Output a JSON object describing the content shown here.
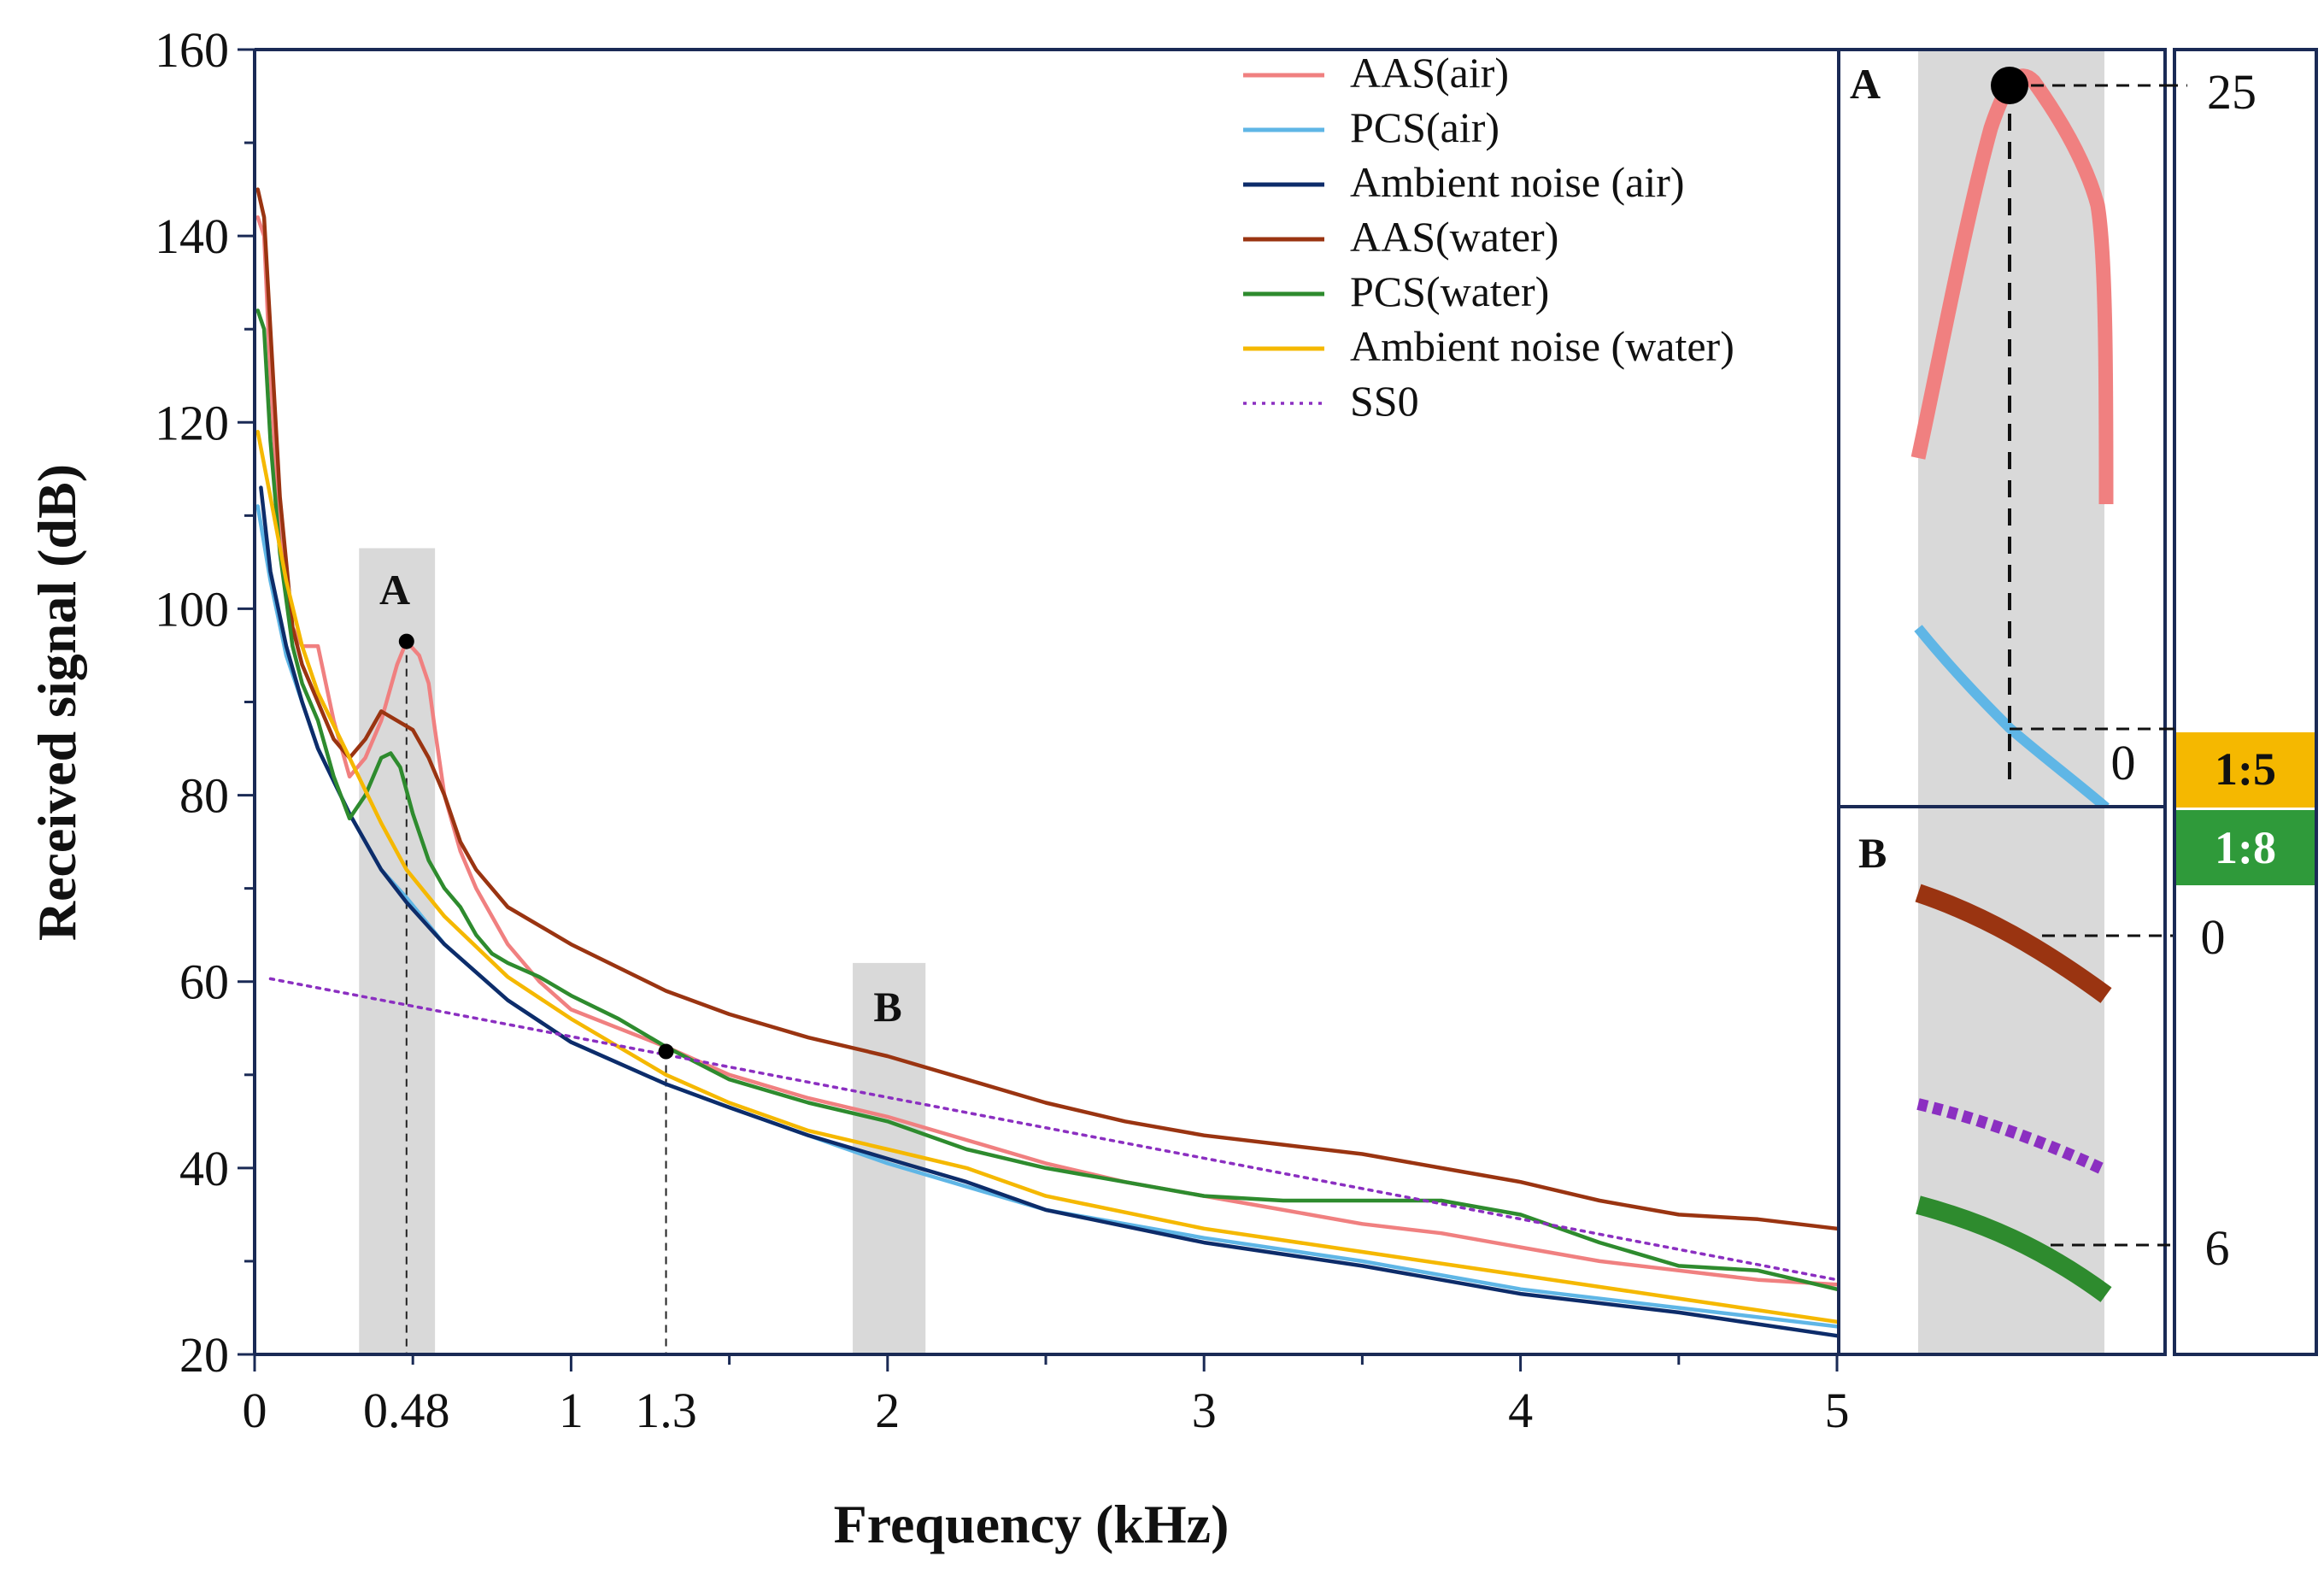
{
  "chart_data": {
    "type": "line",
    "xlabel": "Frequency (kHz)",
    "ylabel": "Received signal (dB)",
    "xlim": [
      0,
      5
    ],
    "ylim": [
      20,
      160
    ],
    "xticks": [
      {
        "value": 0,
        "label": "0"
      },
      {
        "value": 0.48,
        "label": "0.48"
      },
      {
        "value": 1,
        "label": "1"
      },
      {
        "value": 1.3,
        "label": "1.3"
      },
      {
        "value": 2,
        "label": "2"
      },
      {
        "value": 3,
        "label": "3"
      },
      {
        "value": 4,
        "label": "4"
      },
      {
        "value": 5,
        "label": "5"
      }
    ],
    "yticks": [
      {
        "value": 20,
        "label": "20"
      },
      {
        "value": 40,
        "label": "40"
      },
      {
        "value": 60,
        "label": "60"
      },
      {
        "value": 80,
        "label": "80"
      },
      {
        "value": 100,
        "label": "100"
      },
      {
        "value": 120,
        "label": "120"
      },
      {
        "value": 140,
        "label": "140"
      },
      {
        "value": 160,
        "label": "160"
      }
    ],
    "grid": false,
    "legend_position": "top-right",
    "series": [
      {
        "name": "AAS(air)",
        "color": "#f08080",
        "style": "solid",
        "points": [
          [
            0.01,
            142
          ],
          [
            0.03,
            140
          ],
          [
            0.05,
            125
          ],
          [
            0.08,
            108
          ],
          [
            0.12,
            98
          ],
          [
            0.15,
            96
          ],
          [
            0.2,
            96
          ],
          [
            0.25,
            88
          ],
          [
            0.3,
            82
          ],
          [
            0.35,
            84
          ],
          [
            0.4,
            88
          ],
          [
            0.45,
            94
          ],
          [
            0.48,
            96.5
          ],
          [
            0.52,
            95
          ],
          [
            0.55,
            92
          ],
          [
            0.57,
            87
          ],
          [
            0.6,
            80
          ],
          [
            0.65,
            74
          ],
          [
            0.7,
            70
          ],
          [
            0.8,
            64
          ],
          [
            0.9,
            60
          ],
          [
            1.0,
            57
          ],
          [
            1.15,
            55
          ],
          [
            1.3,
            53
          ],
          [
            1.5,
            50
          ],
          [
            1.75,
            47.5
          ],
          [
            2.0,
            45.5
          ],
          [
            2.25,
            43
          ],
          [
            2.5,
            40.5
          ],
          [
            2.75,
            38.5
          ],
          [
            3.0,
            37
          ],
          [
            3.25,
            35.5
          ],
          [
            3.5,
            34
          ],
          [
            3.75,
            33
          ],
          [
            4.0,
            31.5
          ],
          [
            4.25,
            30
          ],
          [
            4.5,
            29
          ],
          [
            4.75,
            28
          ],
          [
            5.0,
            27.5
          ]
        ]
      },
      {
        "name": "PCS(air)",
        "color": "#5fb6e6",
        "style": "solid",
        "points": [
          [
            0.01,
            111
          ],
          [
            0.05,
            103
          ],
          [
            0.1,
            95
          ],
          [
            0.15,
            90
          ],
          [
            0.2,
            85
          ],
          [
            0.3,
            78
          ],
          [
            0.4,
            72
          ],
          [
            0.48,
            69
          ],
          [
            0.6,
            64
          ],
          [
            0.8,
            58
          ],
          [
            1.0,
            53.5
          ],
          [
            1.3,
            49
          ],
          [
            1.5,
            46.5
          ],
          [
            1.75,
            43.5
          ],
          [
            2.0,
            40.5
          ],
          [
            2.25,
            38
          ],
          [
            2.5,
            35.5
          ],
          [
            3.0,
            32.5
          ],
          [
            3.5,
            30
          ],
          [
            4.0,
            27
          ],
          [
            4.5,
            25
          ],
          [
            5.0,
            23
          ]
        ]
      },
      {
        "name": "Ambient noise (air)",
        "color": "#0d2c6a",
        "style": "solid",
        "points": [
          [
            0.02,
            113
          ],
          [
            0.05,
            104
          ],
          [
            0.1,
            96
          ],
          [
            0.15,
            90
          ],
          [
            0.2,
            85
          ],
          [
            0.3,
            78
          ],
          [
            0.4,
            72
          ],
          [
            0.48,
            68.5
          ],
          [
            0.6,
            64
          ],
          [
            0.8,
            58
          ],
          [
            1.0,
            53.5
          ],
          [
            1.3,
            49
          ],
          [
            1.5,
            46.5
          ],
          [
            1.75,
            43.5
          ],
          [
            2.0,
            41
          ],
          [
            2.25,
            38.5
          ],
          [
            2.5,
            35.5
          ],
          [
            3.0,
            32
          ],
          [
            3.5,
            29.5
          ],
          [
            4.0,
            26.5
          ],
          [
            4.5,
            24.5
          ],
          [
            5.0,
            22
          ]
        ]
      },
      {
        "name": "AAS(water)",
        "color": "#9a3411",
        "style": "solid",
        "points": [
          [
            0.01,
            145
          ],
          [
            0.03,
            142
          ],
          [
            0.05,
            130
          ],
          [
            0.08,
            112
          ],
          [
            0.12,
            98
          ],
          [
            0.15,
            94
          ],
          [
            0.2,
            90
          ],
          [
            0.25,
            86
          ],
          [
            0.3,
            84
          ],
          [
            0.35,
            86
          ],
          [
            0.4,
            89
          ],
          [
            0.45,
            88
          ],
          [
            0.5,
            87
          ],
          [
            0.55,
            84
          ],
          [
            0.6,
            80
          ],
          [
            0.65,
            75
          ],
          [
            0.7,
            72
          ],
          [
            0.8,
            68
          ],
          [
            0.9,
            66
          ],
          [
            1.0,
            64
          ],
          [
            1.3,
            59
          ],
          [
            1.5,
            56.5
          ],
          [
            1.75,
            54
          ],
          [
            2.0,
            52
          ],
          [
            2.25,
            49.5
          ],
          [
            2.5,
            47
          ],
          [
            2.75,
            45
          ],
          [
            3.0,
            43.5
          ],
          [
            3.25,
            42.5
          ],
          [
            3.5,
            41.5
          ],
          [
            3.75,
            40
          ],
          [
            4.0,
            38.5
          ],
          [
            4.25,
            36.5
          ],
          [
            4.5,
            35
          ],
          [
            4.75,
            34.5
          ],
          [
            5.0,
            33.5
          ]
        ]
      },
      {
        "name": "PCS(water)",
        "color": "#2e8b2e",
        "style": "solid",
        "points": [
          [
            0.01,
            132
          ],
          [
            0.03,
            130
          ],
          [
            0.05,
            118
          ],
          [
            0.08,
            106
          ],
          [
            0.12,
            96
          ],
          [
            0.15,
            92
          ],
          [
            0.2,
            88
          ],
          [
            0.25,
            82
          ],
          [
            0.3,
            77.5
          ],
          [
            0.35,
            80
          ],
          [
            0.4,
            84
          ],
          [
            0.43,
            84.5
          ],
          [
            0.46,
            83
          ],
          [
            0.5,
            78
          ],
          [
            0.55,
            73
          ],
          [
            0.6,
            70
          ],
          [
            0.65,
            68
          ],
          [
            0.7,
            65
          ],
          [
            0.75,
            63
          ],
          [
            0.8,
            62
          ],
          [
            0.9,
            60.5
          ],
          [
            1.0,
            58.5
          ],
          [
            1.15,
            56
          ],
          [
            1.3,
            53
          ],
          [
            1.5,
            49.5
          ],
          [
            1.75,
            47
          ],
          [
            2.0,
            45
          ],
          [
            2.25,
            42
          ],
          [
            2.5,
            40
          ],
          [
            2.75,
            38.5
          ],
          [
            3.0,
            37
          ],
          [
            3.25,
            36.5
          ],
          [
            3.5,
            36.5
          ],
          [
            3.75,
            36.5
          ],
          [
            4.0,
            35
          ],
          [
            4.25,
            32
          ],
          [
            4.5,
            29.5
          ],
          [
            4.75,
            29
          ],
          [
            5.0,
            27
          ]
        ]
      },
      {
        "name": "Ambient noise (water)",
        "color": "#f5b800",
        "style": "solid",
        "points": [
          [
            0.01,
            119
          ],
          [
            0.05,
            112
          ],
          [
            0.1,
            103
          ],
          [
            0.15,
            96
          ],
          [
            0.2,
            91
          ],
          [
            0.3,
            84
          ],
          [
            0.4,
            77
          ],
          [
            0.48,
            72
          ],
          [
            0.6,
            67
          ],
          [
            0.8,
            60.5
          ],
          [
            1.0,
            56
          ],
          [
            1.3,
            50
          ],
          [
            1.5,
            47
          ],
          [
            1.75,
            44
          ],
          [
            2.0,
            42
          ],
          [
            2.25,
            40
          ],
          [
            2.5,
            37
          ],
          [
            3.0,
            33.5
          ],
          [
            3.5,
            31
          ],
          [
            4.0,
            28.5
          ],
          [
            4.5,
            26
          ],
          [
            5.0,
            23.5
          ]
        ]
      },
      {
        "name": "SS0",
        "color": "#8b2fc1",
        "style": "dotted",
        "points": [
          [
            0.05,
            60.3
          ],
          [
            5.0,
            28
          ]
        ]
      }
    ],
    "highlight_regions": [
      {
        "label": "A",
        "x_start": 0.33,
        "x_end": 0.57,
        "y_top": 106.5
      },
      {
        "label": "B",
        "x_start": 1.89,
        "x_end": 2.12,
        "y_top": 62
      }
    ],
    "markers": [
      {
        "x": 0.48,
        "y": 96.5
      },
      {
        "x": 1.3,
        "y": 52.5
      }
    ],
    "insets": [
      {
        "label": "A",
        "scale_labels": [
          "25",
          "0"
        ],
        "ratio": {
          "text": "1:5",
          "color": "#f5b800",
          "text_color": "#111111"
        }
      },
      {
        "label": "B",
        "scale_labels": [
          "0",
          "6"
        ],
        "ratio": {
          "text": "1:8",
          "color": "#2f9a3a",
          "text_color": "#ffffff"
        }
      }
    ]
  }
}
